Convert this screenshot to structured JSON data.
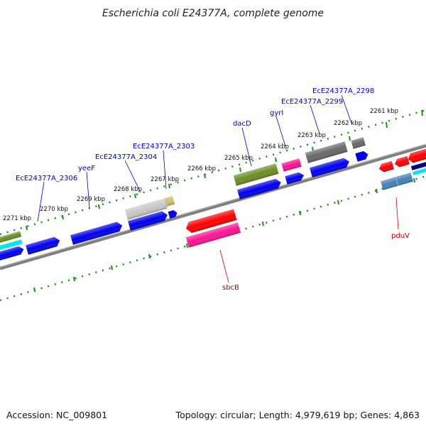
{
  "title": "Escherichia coli E24377A, complete genome",
  "footer": {
    "accession": "Accession: NC_009801",
    "summary": "Topology: circular; Length: 4,979,619 bp; Genes: 4,863"
  },
  "colors": {
    "backbone": "#808080",
    "ticks": "#228b22",
    "blue_gene": "#0000ee",
    "red_gene": "#ff0000",
    "pink_gene": "#ff1493",
    "olive_gene": "#6b8e23",
    "gray_gene": "#696969",
    "light_gray_gene": "#c8c8c8",
    "khaki_gene": "#c8c070",
    "cyan_gene": "#00e5ee",
    "steel_gene": "#4682b4",
    "navy_gene": "#000080",
    "label_blue": "#0000cc",
    "label_red": "#cc0000"
  },
  "kbp_labels": [
    "2271 kbp",
    "2270 kbp",
    "2269 kbp",
    "2268 kbp",
    "2267 kbp",
    "2266 kbp",
    "2265 kbp",
    "2264 kbp",
    "2263 kbp",
    "2262 kbp",
    "2261 kbp"
  ],
  "gene_labels": {
    "ece_2306": "EcE24377A_2306",
    "yeef": "yeeF",
    "ece_2304": "EcE24377A_2304",
    "ece_2303": "EcE24377A_2303",
    "dacd": "dacD",
    "gyri": "gyrI",
    "ece_2299": "EcE24377A_2299",
    "ece_2298": "EcE24377A_2298",
    "sbcb": "sbcB",
    "pduv": "pduV"
  }
}
